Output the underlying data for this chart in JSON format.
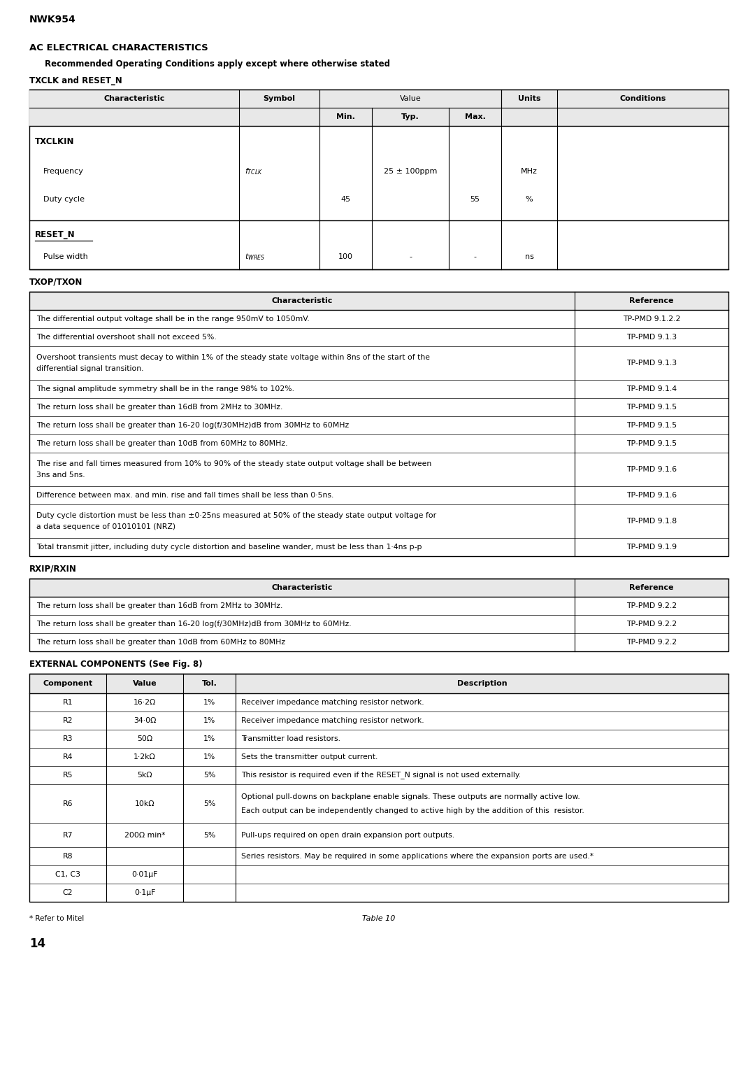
{
  "page_title": "NWK954",
  "section_title": "AC ELECTRICAL CHARACTERISTICS",
  "section_subtitle": "Recommended Operating Conditions apply except where otherwise stated",
  "subsection1": "TXCLK and RESET_N",
  "subsection2": "TXOP/TXON",
  "subsection3": "RXIP/RXIN",
  "subsection4": "EXTERNAL COMPONENTS (See Fig. 8)",
  "table2_rows": [
    [
      "The differential output voltage shall be in the range 950mV to 1050mV.",
      "TP-PMD 9.1.2.2"
    ],
    [
      "The differential overshoot shall not exceed 5%.",
      "TP-PMD 9.1.3"
    ],
    [
      "Overshoot transients must decay to within 1% of the steady state voltage within 8ns of the start of the\ndifferential signal transition.",
      "TP-PMD 9.1.3"
    ],
    [
      "The signal amplitude symmetry shall be in the range 98% to 102%.",
      "TP-PMD 9.1.4"
    ],
    [
      "The return loss shall be greater than 16dB from 2MHz to 30MHz.",
      "TP-PMD 9.1.5"
    ],
    [
      "The return loss shall be greater than 16-20 log(f/30MHz)dB from 30MHz to 60MHz",
      "TP-PMD 9.1.5"
    ],
    [
      "The return loss shall be greater than 10dB from 60MHz to 80MHz.",
      "TP-PMD 9.1.5"
    ],
    [
      "The rise and fall times measured from 10% to 90% of the steady state output voltage shall be between\n3ns and 5ns.",
      "TP-PMD 9.1.6"
    ],
    [
      "Difference between max. and min. rise and fall times shall be less than 0·5ns.",
      "TP-PMD 9.1.6"
    ],
    [
      "Duty cycle distortion must be less than ±0·25ns measured at 50% of the steady state output voltage for\na data sequence of 01010101 (NRZ)",
      "TP-PMD 9.1.8"
    ],
    [
      "Total transmit jitter, including duty cycle distortion and baseline wander, must be less than 1·4ns p-p",
      "TP-PMD 9.1.9"
    ]
  ],
  "table3_rows": [
    [
      "The return loss shall be greater than 16dB from 2MHz to 30MHz.",
      "TP-PMD 9.2.2"
    ],
    [
      "The return loss shall be greater than 16-20 log(f/30MHz)dB from 30MHz to 60MHz.",
      "TP-PMD 9.2.2"
    ],
    [
      "The return loss shall be greater than 10dB from 60MHz to 80MHz",
      "TP-PMD 9.2.2"
    ]
  ],
  "table4_headers": [
    "Component",
    "Value",
    "Tol.",
    "Description"
  ],
  "table4_rows": [
    [
      "R1",
      "16·2Ω",
      "1%",
      "Receiver impedance matching resistor network."
    ],
    [
      "R2",
      "34·0Ω",
      "1%",
      "Receiver impedance matching resistor network."
    ],
    [
      "R3",
      "50Ω",
      "1%",
      "Transmitter load resistors."
    ],
    [
      "R4",
      "1·2kΩ",
      "1%",
      "Sets the transmitter output current."
    ],
    [
      "R5",
      "5kΩ",
      "5%",
      "This resistor is required even if the RESET_N signal is not used externally."
    ],
    [
      "R6",
      "10kΩ",
      "5%",
      "Optional pull-downs on backplane enable signals. These outputs are normally active low.\nEach output can be independently changed to active high by the addition of this  resistor."
    ],
    [
      "R7",
      "200Ω min*",
      "5%",
      "Pull-ups required on open drain expansion port outputs."
    ],
    [
      "R8",
      "",
      "",
      "Series resistors. May be required in some applications where the expansion ports are used.*"
    ],
    [
      "C1, C3",
      "0·01μF",
      "",
      ""
    ],
    [
      "C2",
      "0·1μF",
      "",
      ""
    ]
  ],
  "footer_note": "* Refer to Mitel",
  "footer_table": "Table 10",
  "page_number": "14",
  "bg_color": "#ffffff",
  "header_bg": "#e8e8e8"
}
